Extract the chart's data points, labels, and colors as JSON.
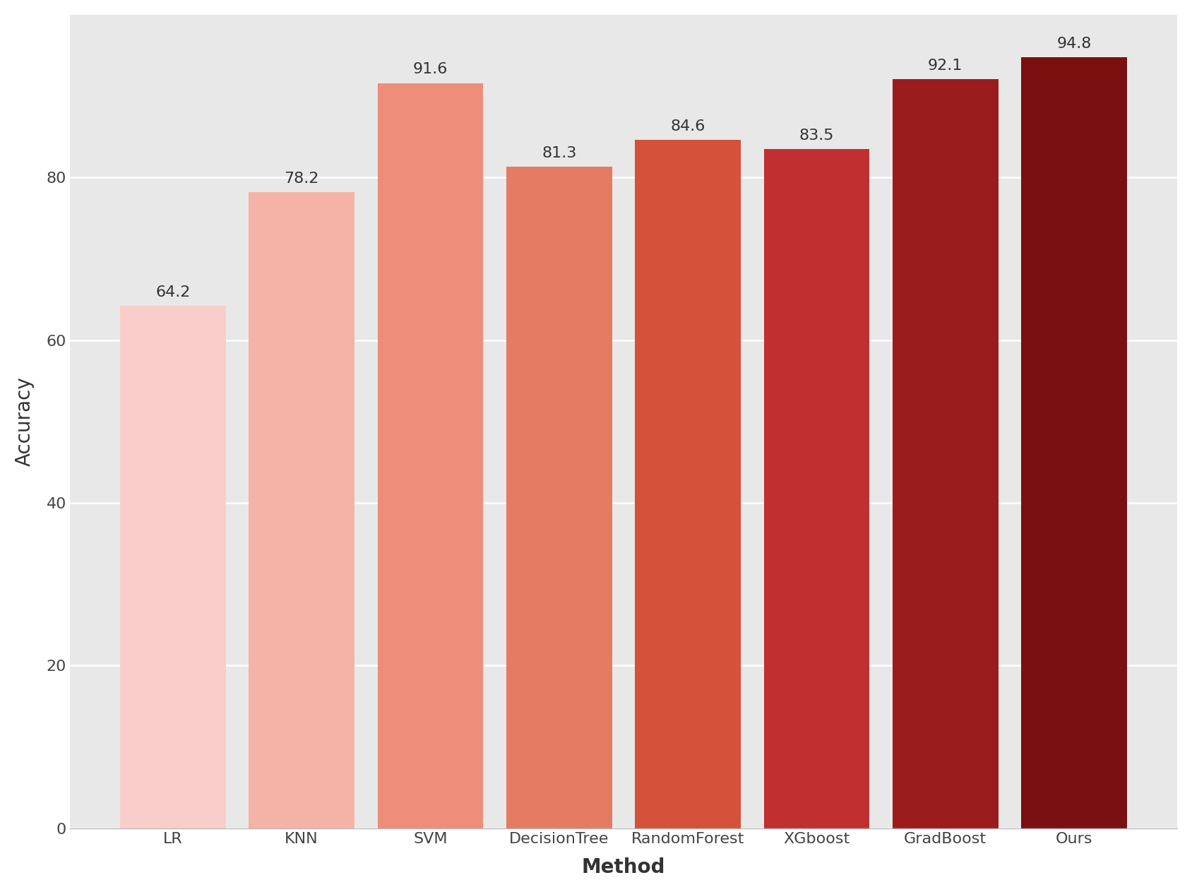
{
  "categories": [
    "LR",
    "KNN",
    "SVM",
    "DecisionTree",
    "RandomForest",
    "XGboost",
    "GradBoost",
    "Ours"
  ],
  "values": [
    64.2,
    78.2,
    91.6,
    81.3,
    84.6,
    83.5,
    92.1,
    94.8
  ],
  "bar_colors": [
    "#F9CECA",
    "#F5B3A8",
    "#EE8E7A",
    "#E57B63",
    "#D4513A",
    "#C03030",
    "#9B1C1C",
    "#7A1010"
  ],
  "xlabel": "Method",
  "ylabel": "Accuracy",
  "ylim": [
    0,
    100
  ],
  "yticks": [
    0,
    20,
    40,
    60,
    80
  ],
  "label_fontsize": 20,
  "tick_fontsize": 16,
  "value_fontsize": 16,
  "plot_bg_color": "#E8E8E8",
  "fig_bg_color": "#FFFFFF",
  "bar_width": 0.82,
  "grid_color": "#FFFFFF",
  "grid_linewidth": 1.8
}
